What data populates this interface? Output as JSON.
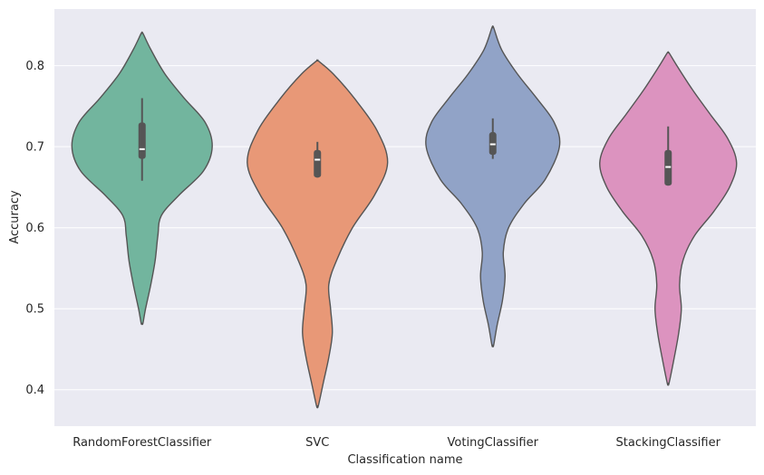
{
  "chart_data": {
    "type": "violin",
    "title": "",
    "xlabel": "Classification name",
    "ylabel": "Accuracy",
    "ylim": [
      0.355,
      0.87
    ],
    "yticks": [
      0.4,
      0.5,
      0.6,
      0.7,
      0.8
    ],
    "grid": true,
    "categories": [
      "RandomForestClassifier",
      "SVC",
      "VotingClassifier",
      "StackingClassifier"
    ],
    "series": [
      {
        "category": "RandomForestClassifier",
        "color": "#72b59e",
        "min": 0.482,
        "max": 0.84,
        "box": {
          "q1": 0.685,
          "median": 0.697,
          "q3": 0.73,
          "whisker_low": 0.658,
          "whisker_high": 0.76
        },
        "density": [
          [
            0.482,
            0.01
          ],
          [
            0.5,
            0.04
          ],
          [
            0.53,
            0.1
          ],
          [
            0.56,
            0.15
          ],
          [
            0.59,
            0.18
          ],
          [
            0.615,
            0.22
          ],
          [
            0.64,
            0.42
          ],
          [
            0.67,
            0.7
          ],
          [
            0.7,
            0.8
          ],
          [
            0.73,
            0.72
          ],
          [
            0.76,
            0.48
          ],
          [
            0.79,
            0.26
          ],
          [
            0.82,
            0.1
          ],
          [
            0.84,
            0.01
          ]
        ]
      },
      {
        "category": "SVC",
        "color": "#e89877",
        "min": 0.38,
        "max": 0.806,
        "box": {
          "q1": 0.662,
          "median": 0.684,
          "q3": 0.696,
          "whisker_low": 0.662,
          "whisker_high": 0.706
        },
        "density": [
          [
            0.38,
            0.01
          ],
          [
            0.41,
            0.07
          ],
          [
            0.44,
            0.13
          ],
          [
            0.47,
            0.17
          ],
          [
            0.5,
            0.15
          ],
          [
            0.53,
            0.13
          ],
          [
            0.56,
            0.22
          ],
          [
            0.6,
            0.4
          ],
          [
            0.64,
            0.65
          ],
          [
            0.68,
            0.8
          ],
          [
            0.72,
            0.68
          ],
          [
            0.76,
            0.42
          ],
          [
            0.79,
            0.18
          ],
          [
            0.806,
            0.01
          ]
        ]
      },
      {
        "category": "VotingClassifier",
        "color": "#91a3c7",
        "min": 0.455,
        "max": 0.847,
        "box": {
          "q1": 0.69,
          "median": 0.703,
          "q3": 0.718,
          "whisker_low": 0.685,
          "whisker_high": 0.735
        },
        "density": [
          [
            0.455,
            0.01
          ],
          [
            0.48,
            0.05
          ],
          [
            0.51,
            0.11
          ],
          [
            0.54,
            0.14
          ],
          [
            0.57,
            0.12
          ],
          [
            0.6,
            0.18
          ],
          [
            0.63,
            0.36
          ],
          [
            0.66,
            0.6
          ],
          [
            0.7,
            0.76
          ],
          [
            0.73,
            0.7
          ],
          [
            0.76,
            0.5
          ],
          [
            0.79,
            0.28
          ],
          [
            0.82,
            0.1
          ],
          [
            0.847,
            0.01
          ]
        ]
      },
      {
        "category": "StackingClassifier",
        "color": "#dc93bf",
        "min": 0.408,
        "max": 0.816,
        "box": {
          "q1": 0.652,
          "median": 0.675,
          "q3": 0.696,
          "whisker_low": 0.652,
          "whisker_high": 0.725
        },
        "density": [
          [
            0.408,
            0.01
          ],
          [
            0.44,
            0.07
          ],
          [
            0.47,
            0.12
          ],
          [
            0.5,
            0.15
          ],
          [
            0.53,
            0.13
          ],
          [
            0.56,
            0.17
          ],
          [
            0.59,
            0.3
          ],
          [
            0.62,
            0.52
          ],
          [
            0.65,
            0.7
          ],
          [
            0.68,
            0.78
          ],
          [
            0.71,
            0.68
          ],
          [
            0.74,
            0.48
          ],
          [
            0.77,
            0.28
          ],
          [
            0.8,
            0.1
          ],
          [
            0.816,
            0.01
          ]
        ]
      }
    ]
  }
}
